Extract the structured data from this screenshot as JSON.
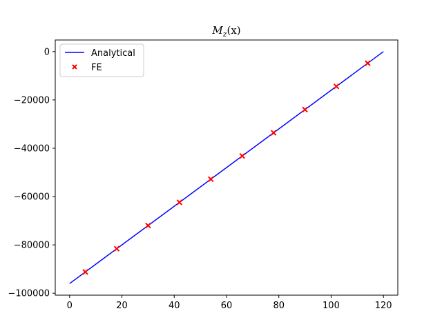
{
  "chart_data": {
    "type": "line",
    "title_main": "M",
    "title_sub": "z",
    "title_arg": "(x)",
    "xlabel": "",
    "ylabel": "",
    "xlim": [
      -5.5,
      125.5
    ],
    "ylim": [
      -100800,
      4800
    ],
    "x_ticks": [
      0,
      20,
      40,
      60,
      80,
      100,
      120
    ],
    "y_ticks": [
      0,
      -20000,
      -40000,
      -60000,
      -80000,
      -100000
    ],
    "x_tick_labels": [
      "0",
      "20",
      "40",
      "60",
      "80",
      "100",
      "120"
    ],
    "y_tick_labels": [
      "0",
      "−20000",
      "−40000",
      "−60000",
      "−80000",
      "−100000"
    ],
    "legend_position": "upper-left",
    "grid": false,
    "series": [
      {
        "name": "Analytical",
        "kind": "line",
        "color": "#0000ff",
        "x": [
          0,
          120
        ],
        "y": [
          -96000,
          0
        ]
      },
      {
        "name": "FE",
        "kind": "scatter",
        "marker": "x",
        "color": "#ff0000",
        "x": [
          6,
          18,
          30,
          42,
          54,
          66,
          78,
          90,
          102,
          114
        ],
        "y": [
          -91200,
          -81600,
          -72000,
          -62400,
          -52800,
          -43200,
          -33600,
          -24000,
          -14400,
          -4800
        ]
      }
    ]
  }
}
